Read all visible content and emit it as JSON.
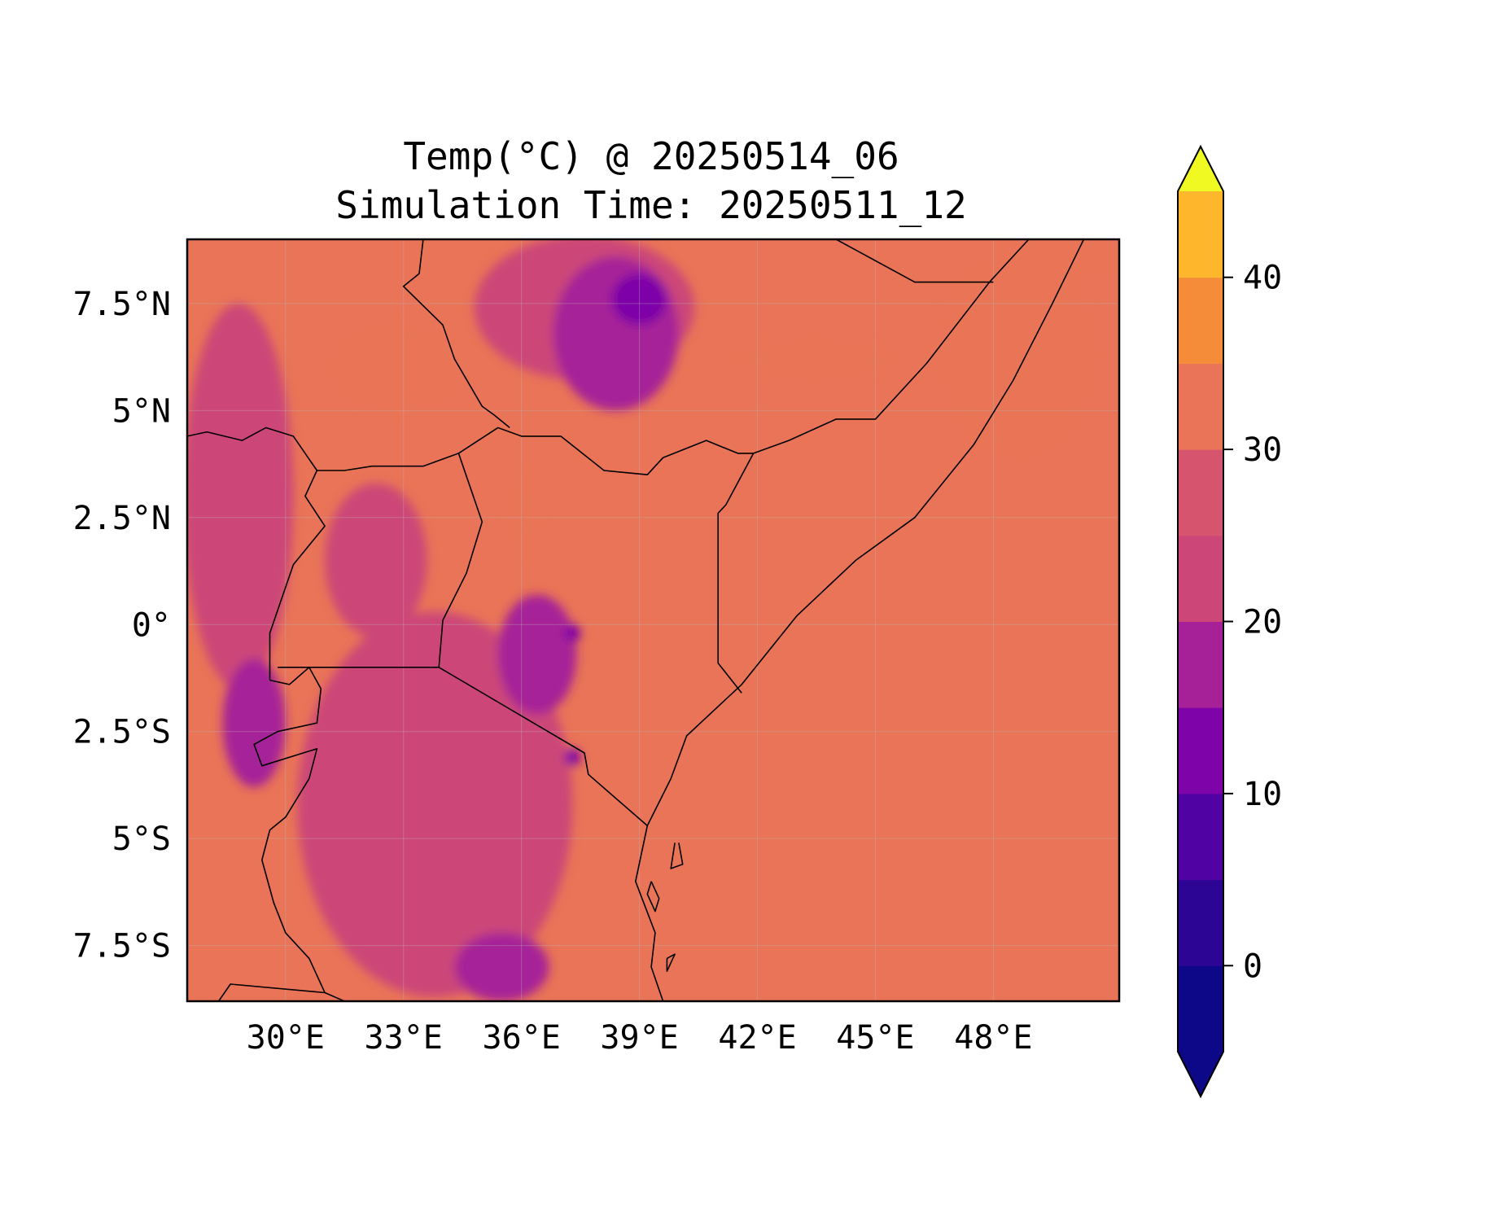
{
  "figure": {
    "title_line1": "Temp(°C) @ 20250514_06",
    "title_line2": "Simulation Time: 20250511_12"
  },
  "map": {
    "projection": "PlateCarree",
    "extent": {
      "lon": [
        27.5,
        51.2
      ],
      "lat": [
        -8.8,
        9.0
      ]
    },
    "background_color": "#e97457",
    "grid": true,
    "x_ticks": [
      {
        "value": 30,
        "label": "30°E"
      },
      {
        "value": 33,
        "label": "33°E"
      },
      {
        "value": 36,
        "label": "36°E"
      },
      {
        "value": 39,
        "label": "39°E"
      },
      {
        "value": 42,
        "label": "42°E"
      },
      {
        "value": 45,
        "label": "45°E"
      },
      {
        "value": 48,
        "label": "48°E"
      }
    ],
    "y_ticks": [
      {
        "value": 7.5,
        "label": "7.5°N"
      },
      {
        "value": 5,
        "label": "5°N"
      },
      {
        "value": 2.5,
        "label": "2.5°N"
      },
      {
        "value": 0,
        "label": "0°"
      },
      {
        "value": -2.5,
        "label": "2.5°S"
      },
      {
        "value": -5,
        "label": "5°S"
      },
      {
        "value": -7.5,
        "label": "7.5°S"
      }
    ],
    "regions": [
      {
        "name": "ethiopian-highlands-cool",
        "band": "15-20",
        "lon": 38.4,
        "lat": 6.8,
        "rlon": 1.6,
        "rlat": 1.8
      },
      {
        "name": "ethiopian-highlands-cold",
        "band": "10-15",
        "lon": 39.0,
        "lat": 7.6,
        "rlon": 0.7,
        "rlat": 0.6
      },
      {
        "name": "west-ethiopia-mild",
        "band": "20-25",
        "lon": 37.6,
        "lat": 7.4,
        "rlon": 2.8,
        "rlat": 1.7
      },
      {
        "name": "south-sudan-hot",
        "band": "30-35",
        "lon": 32.8,
        "lat": 6.0,
        "rlon": 1.7,
        "rlat": 1.0
      },
      {
        "name": "lake-turkana-hot",
        "band": "30-35",
        "lon": 36.1,
        "lat": 2.6,
        "rlon": 0.35,
        "rlat": 1.0
      },
      {
        "name": "ogaden-hot",
        "band": "30-35",
        "lon": 43.5,
        "lat": 6.2,
        "rlon": 2.2,
        "rlat": 0.4
      },
      {
        "name": "somalia-coast-hot",
        "band": "30-35",
        "lon": 48.6,
        "lat": 6.3,
        "rlon": 2.0,
        "rlat": 2.4
      },
      {
        "name": "gulf-aden-hot",
        "band": "30-35",
        "lon": 49.5,
        "lat": 8.6,
        "rlon": 1.5,
        "rlat": 0.6
      },
      {
        "name": "congo-basin-mild",
        "band": "20-25",
        "lon": 28.8,
        "lat": 3.0,
        "rlon": 1.4,
        "rlat": 4.5
      },
      {
        "name": "albertine-rift-cool",
        "band": "15-20",
        "lon": 29.2,
        "lat": -2.3,
        "rlon": 0.8,
        "rlat": 1.5
      },
      {
        "name": "tanzania-plateau-mild",
        "band": "20-25",
        "lon": 33.8,
        "lat": -4.2,
        "rlon": 3.5,
        "rlat": 4.5
      },
      {
        "name": "kenya-highlands-cool",
        "band": "15-20",
        "lon": 36.4,
        "lat": -0.7,
        "rlon": 1.0,
        "rlat": 1.4
      },
      {
        "name": "kilimanjaro-cold",
        "band": "10-15",
        "lon": 37.3,
        "lat": -3.1,
        "rlon": 0.2,
        "rlat": 0.2
      },
      {
        "name": "mount-kenya-cold",
        "band": "10-15",
        "lon": 37.3,
        "lat": -0.2,
        "rlon": 0.2,
        "rlat": 0.2
      },
      {
        "name": "southern-highlands-cool",
        "band": "15-20",
        "lon": 35.5,
        "lat": -8.0,
        "rlon": 1.2,
        "rlat": 0.8
      },
      {
        "name": "uganda-mild",
        "band": "20-25",
        "lon": 32.3,
        "lat": 1.5,
        "rlon": 1.3,
        "rlat": 1.8
      }
    ],
    "boundaries": [
      {
        "name": "africa-east-coastline",
        "points": [
          [
            39.6,
            -8.8
          ],
          [
            39.3,
            -8.0
          ],
          [
            39.4,
            -7.2
          ],
          [
            38.9,
            -6.0
          ],
          [
            39.2,
            -4.7
          ],
          [
            39.8,
            -3.6
          ],
          [
            40.2,
            -2.6
          ],
          [
            40.9,
            -2.0
          ],
          [
            41.6,
            -1.4
          ],
          [
            43.0,
            0.2
          ],
          [
            44.5,
            1.5
          ],
          [
            46.0,
            2.5
          ],
          [
            47.5,
            4.2
          ],
          [
            48.5,
            5.7
          ],
          [
            49.5,
            7.5
          ],
          [
            50.3,
            9.0
          ]
        ]
      },
      {
        "name": "kenya-tanzania-border",
        "points": [
          [
            33.9,
            -1.0
          ],
          [
            37.6,
            -3.0
          ],
          [
            37.7,
            -3.5
          ],
          [
            39.2,
            -4.7
          ]
        ]
      },
      {
        "name": "lake-victoria-south-border",
        "points": [
          [
            29.8,
            -1.0
          ],
          [
            33.9,
            -1.0
          ]
        ]
      },
      {
        "name": "uganda-kenya-border",
        "points": [
          [
            33.9,
            -1.0
          ],
          [
            34.0,
            0.1
          ],
          [
            34.6,
            1.2
          ],
          [
            35.0,
            2.4
          ],
          [
            34.4,
            4.0
          ],
          [
            33.5,
            3.7
          ]
        ]
      },
      {
        "name": "kenya-ethiopia-border",
        "points": [
          [
            34.4,
            4.0
          ],
          [
            35.4,
            4.6
          ],
          [
            36.0,
            4.4
          ],
          [
            37.0,
            4.4
          ],
          [
            38.1,
            3.6
          ],
          [
            39.2,
            3.5
          ],
          [
            39.6,
            3.9
          ],
          [
            40.7,
            4.3
          ],
          [
            41.5,
            4.0
          ],
          [
            41.9,
            4.0
          ]
        ]
      },
      {
        "name": "kenya-somalia-border",
        "points": [
          [
            41.9,
            4.0
          ],
          [
            41.2,
            2.8
          ],
          [
            41.0,
            2.6
          ],
          [
            41.0,
            -0.9
          ],
          [
            41.6,
            -1.6
          ]
        ]
      },
      {
        "name": "ethiopia-somalia-border",
        "points": [
          [
            41.9,
            4.0
          ],
          [
            42.8,
            4.3
          ],
          [
            44.0,
            4.8
          ],
          [
            45.0,
            4.8
          ],
          [
            46.3,
            6.1
          ],
          [
            47.9,
            8.0
          ],
          [
            48.9,
            9.0
          ]
        ]
      },
      {
        "name": "ethiopia-somaliland-border",
        "points": [
          [
            44.0,
            9.0
          ],
          [
            46.0,
            8.0
          ],
          [
            47.0,
            8.0
          ],
          [
            48.0,
            8.0
          ]
        ]
      },
      {
        "name": "south-sudan-ethiopia-border",
        "points": [
          [
            33.5,
            9.0
          ],
          [
            33.4,
            8.2
          ],
          [
            33.0,
            7.9
          ],
          [
            34.0,
            7.0
          ],
          [
            34.3,
            6.2
          ],
          [
            35.0,
            5.1
          ],
          [
            35.3,
            4.9
          ],
          [
            35.7,
            4.6
          ]
        ]
      },
      {
        "name": "south-sudan-uganda-border",
        "points": [
          [
            33.5,
            3.7
          ],
          [
            32.2,
            3.7
          ],
          [
            31.5,
            3.6
          ],
          [
            30.8,
            3.6
          ],
          [
            30.2,
            4.4
          ],
          [
            29.5,
            4.6
          ],
          [
            28.9,
            4.3
          ],
          [
            28.0,
            4.5
          ],
          [
            27.5,
            4.4
          ]
        ]
      },
      {
        "name": "uganda-drc-border",
        "points": [
          [
            30.8,
            3.6
          ],
          [
            30.5,
            3.0
          ],
          [
            31.0,
            2.3
          ],
          [
            30.2,
            1.4
          ],
          [
            29.9,
            0.6
          ],
          [
            29.6,
            -0.2
          ],
          [
            29.6,
            -1.3
          ]
        ]
      },
      {
        "name": "rwanda-burundi-outline",
        "points": [
          [
            29.6,
            -1.3
          ],
          [
            30.1,
            -1.4
          ],
          [
            30.6,
            -1.0
          ],
          [
            30.9,
            -1.5
          ],
          [
            30.8,
            -2.3
          ],
          [
            29.8,
            -2.5
          ],
          [
            29.2,
            -2.8
          ],
          [
            29.4,
            -3.3
          ],
          [
            30.8,
            -2.9
          ],
          [
            30.6,
            -3.6
          ],
          [
            30.0,
            -4.5
          ],
          [
            29.6,
            -4.8
          ],
          [
            29.4,
            -5.5
          ],
          [
            29.7,
            -6.5
          ],
          [
            30.0,
            -7.2
          ],
          [
            30.6,
            -7.8
          ],
          [
            31.0,
            -8.6
          ],
          [
            31.5,
            -8.8
          ]
        ]
      },
      {
        "name": "tanzania-zambia-border",
        "points": [
          [
            28.3,
            -8.8
          ],
          [
            28.6,
            -8.4
          ],
          [
            31.0,
            -8.6
          ]
        ]
      },
      {
        "name": "zanzibar-pemba",
        "points": [
          [
            40.0,
            -5.1
          ],
          [
            40.1,
            -5.6
          ],
          [
            39.8,
            -5.7
          ],
          [
            39.9,
            -5.1
          ]
        ]
      },
      {
        "name": "zanzibar-unguja",
        "points": [
          [
            39.3,
            -6.0
          ],
          [
            39.5,
            -6.4
          ],
          [
            39.4,
            -6.7
          ],
          [
            39.2,
            -6.3
          ],
          [
            39.3,
            -6.0
          ]
        ]
      },
      {
        "name": "mafia-island",
        "points": [
          [
            39.7,
            -7.8
          ],
          [
            39.9,
            -7.7
          ],
          [
            39.7,
            -8.1
          ],
          [
            39.7,
            -7.8
          ]
        ]
      }
    ]
  },
  "colorbar": {
    "extend": "both",
    "levels": [
      -5,
      0,
      5,
      10,
      15,
      20,
      25,
      30,
      35,
      40,
      45
    ],
    "colors": [
      "#0d0887",
      "#2c0594",
      "#5102a3",
      "#7e03a8",
      "#a62098",
      "#cc4778",
      "#d6546e",
      "#e97457",
      "#f58c3a",
      "#feb72d",
      "#f0e226"
    ],
    "under_color": "#0d0887",
    "over_color": "#f0f921",
    "ticks": [
      {
        "value": 0,
        "label": "0"
      },
      {
        "value": 10,
        "label": "10"
      },
      {
        "value": 20,
        "label": "20"
      },
      {
        "value": 30,
        "label": "30"
      },
      {
        "value": 40,
        "label": "40"
      }
    ]
  }
}
